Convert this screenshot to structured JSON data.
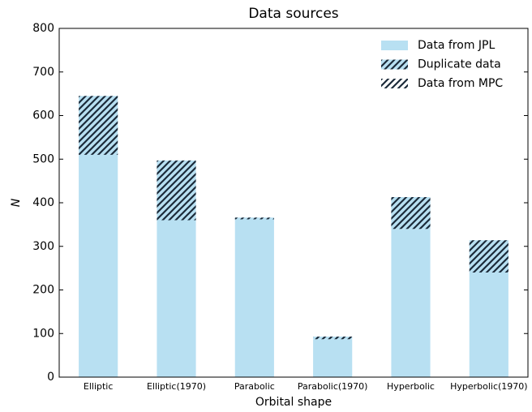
{
  "chart_data": {
    "type": "bar",
    "stacked": true,
    "title": "Data sources",
    "xlabel": "Orbital shape",
    "ylabel": "N",
    "categories": [
      "Elliptic",
      "Elliptic(1970)",
      "Parabolic",
      "Parabolic(1970)",
      "Hyperbolic",
      "Hyperbolic(1970)"
    ],
    "series": [
      {
        "name": "Data from JPL",
        "color": "#b8e0f2",
        "hatch": false,
        "values": [
          510,
          360,
          362,
          87,
          340,
          240
        ]
      },
      {
        "name": "Duplicate data",
        "color": "#b8e0f2",
        "hatch": true,
        "values": [
          135,
          137,
          4,
          6,
          73,
          74
        ]
      },
      {
        "name": "Data from MPC",
        "color": "#ffffff",
        "hatch": true,
        "values": [
          0,
          0,
          0,
          0,
          0,
          0
        ]
      }
    ],
    "ylim": [
      0,
      800
    ],
    "yticks": [
      0,
      100,
      200,
      300,
      400,
      500,
      600,
      700,
      800
    ],
    "legend": "upper right"
  }
}
